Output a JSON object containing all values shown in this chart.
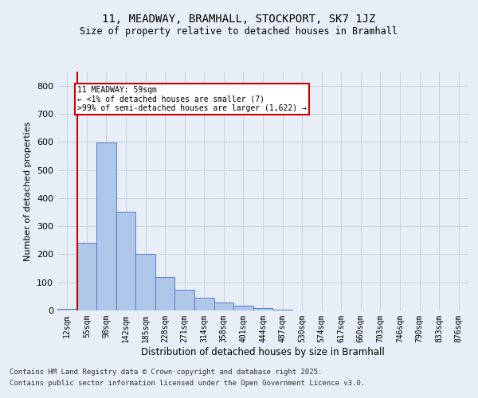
{
  "title1": "11, MEADWAY, BRAMHALL, STOCKPORT, SK7 1JZ",
  "title2": "Size of property relative to detached houses in Bramhall",
  "xlabel": "Distribution of detached houses by size in Bramhall",
  "ylabel": "Number of detached properties",
  "bar_labels": [
    "12sqm",
    "55sqm",
    "98sqm",
    "142sqm",
    "185sqm",
    "228sqm",
    "271sqm",
    "314sqm",
    "358sqm",
    "401sqm",
    "444sqm",
    "487sqm",
    "530sqm",
    "574sqm",
    "617sqm",
    "660sqm",
    "703sqm",
    "746sqm",
    "790sqm",
    "833sqm",
    "876sqm"
  ],
  "bar_values": [
    5,
    240,
    597,
    352,
    200,
    120,
    75,
    45,
    27,
    18,
    8,
    2,
    0,
    0,
    0,
    0,
    0,
    0,
    0,
    0,
    0
  ],
  "bar_color": "#aec6e8",
  "bar_edge_color": "#4472c4",
  "annotation_text": "11 MEADWAY: 59sqm\n← <1% of detached houses are smaller (7)\n>99% of semi-detached houses are larger (1,622) →",
  "annotation_box_color": "#ffffff",
  "annotation_box_edge": "#cc0000",
  "vline_color": "#cc0000",
  "ylim": [
    0,
    850
  ],
  "yticks": [
    0,
    100,
    200,
    300,
    400,
    500,
    600,
    700,
    800
  ],
  "grid_color": "#c8d0dc",
  "bg_color": "#e8eef7",
  "footer1": "Contains HM Land Registry data © Crown copyright and database right 2025.",
  "footer2": "Contains public sector information licensed under the Open Government Licence v3.0."
}
